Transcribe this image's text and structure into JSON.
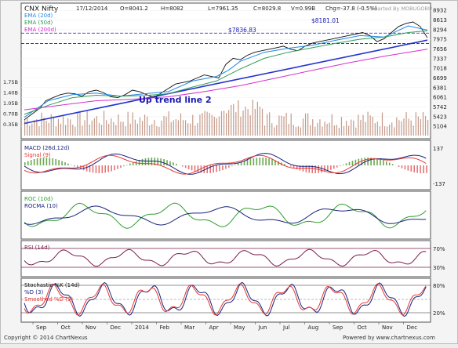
{
  "header": {
    "symbol": "CNX Nifty",
    "date": "17/12/2014",
    "open": "O=8041.2",
    "high": "H=8082",
    "low": "L=7961.35",
    "close": "C=8029.8",
    "volume": "V=0.99B",
    "change": "Chg=-37.8 (-0.5%)",
    "watermark": "Charted By MOBUGOBU"
  },
  "footer": {
    "copyright": "Copyright © 2014 ChartNexus",
    "powered": "Powered by www.chartnexus.com"
  },
  "colors": {
    "price": "#111111",
    "ema20": "#1e88e5",
    "ema50": "#2e9d5a",
    "ema200": "#d42fcf",
    "trendline": "#2233cc",
    "annotation": "#1a1ab0",
    "volume": "#c59a8a",
    "macd": "#1a237e",
    "signal": "#e53935",
    "roc": "#2e9d2e",
    "rocma": "#1a237e",
    "rsi": "#7a1f4a",
    "stochK": "#1a237e",
    "stochD": "#e53935"
  },
  "chart_data": [
    {
      "type": "line",
      "title": "CNX Nifty daily price",
      "x_ticks": [
        "Sep",
        "Oct",
        "Nov",
        "Dec",
        "2014",
        "Feb",
        "Mar",
        "Apr",
        "May",
        "Jun",
        "Jul",
        "Aug",
        "Sep",
        "Oct",
        "Nov",
        "Dec"
      ],
      "y_ticks": [
        8932,
        8613,
        8294,
        7975,
        7656,
        7337,
        7018,
        6699,
        6381,
        6061,
        5742,
        5423,
        5104
      ],
      "ylim": [
        4850,
        8990
      ],
      "legend": [
        "EMA (20d)",
        "EMA (50d)",
        "EMA (200d)"
      ],
      "series": [
        {
          "name": "Price",
          "x": [
            0,
            6,
            13,
            18,
            24,
            30,
            36,
            42,
            48,
            54,
            60,
            66,
            72,
            78,
            84,
            90,
            96,
            102,
            108,
            114,
            120,
            126,
            132,
            138,
            144,
            150,
            156,
            162,
            168,
            174,
            180,
            186,
            192,
            198,
            204,
            210,
            216,
            222,
            228,
            234,
            240,
            246,
            252,
            258,
            264,
            270,
            276,
            282,
            288,
            294,
            300,
            306,
            312,
            318,
            324,
            330,
            336
          ],
          "y": [
            5320,
            5500,
            5700,
            5950,
            6050,
            6150,
            6200,
            6180,
            6100,
            6250,
            6300,
            6220,
            6080,
            6050,
            6150,
            6300,
            6250,
            6150,
            6050,
            6200,
            6350,
            6500,
            6550,
            6600,
            6700,
            6800,
            6750,
            6700,
            7150,
            7350,
            7300,
            7450,
            7550,
            7600,
            7650,
            7700,
            7750,
            7650,
            7600,
            7750,
            7850,
            7900,
            7950,
            8000,
            8050,
            8100,
            8150,
            8200,
            8100,
            7900,
            8000,
            8200,
            8400,
            8500,
            8550,
            8400,
            8030
          ]
        },
        {
          "name": "EMA (20d)",
          "x": [
            0,
            20,
            40,
            60,
            80,
            100,
            120,
            140,
            160,
            170,
            180,
            200,
            220,
            240,
            260,
            280,
            300,
            320,
            336
          ],
          "y": [
            5400,
            5950,
            6150,
            6200,
            6100,
            6180,
            6250,
            6600,
            6750,
            6950,
            7250,
            7550,
            7680,
            7780,
            7950,
            8100,
            8050,
            8420,
            8280
          ]
        },
        {
          "name": "EMA (50d)",
          "x": [
            0,
            20,
            40,
            60,
            80,
            100,
            120,
            140,
            160,
            180,
            200,
            220,
            240,
            260,
            280,
            300,
            320,
            336
          ],
          "y": [
            5500,
            5800,
            6050,
            6130,
            6100,
            6120,
            6180,
            6400,
            6600,
            7000,
            7350,
            7550,
            7700,
            7850,
            7980,
            8050,
            8200,
            8260
          ]
        },
        {
          "name": "EMA (200d)",
          "x": [
            0,
            30,
            60,
            90,
            120,
            150,
            180,
            210,
            240,
            270,
            300,
            336
          ],
          "y": [
            5650,
            5800,
            5950,
            6000,
            6080,
            6250,
            6450,
            6700,
            6950,
            7200,
            7420,
            7650
          ]
        }
      ],
      "trendline": {
        "label": "Up trend line 2",
        "x": [
          0,
          336
        ],
        "y": [
          5200,
          7950
        ]
      },
      "annotations": [
        "$8181.01",
        "$7836.83"
      ],
      "volume_axis": [
        "1.75B",
        "1.40B",
        "1.05B",
        "0.70B",
        "0.35B"
      ]
    },
    {
      "type": "line",
      "title": "MACD (26d,12d)",
      "y_ticks": [
        137,
        -137
      ],
      "series": [
        {
          "name": "MACD (26d,12d)"
        },
        {
          "name": "Signal (9)"
        }
      ]
    },
    {
      "type": "line",
      "title": "ROC (10d)",
      "series": [
        {
          "name": "ROC (10d)"
        },
        {
          "name": "ROCMA (10)"
        }
      ]
    },
    {
      "type": "line",
      "title": "RSI (14d)",
      "y_ticks": [
        "70%",
        "30%"
      ],
      "series": [
        {
          "name": "RSI (14d)"
        }
      ]
    },
    {
      "type": "line",
      "title": "Stochastic %K (14d)",
      "y_ticks": [
        "80%",
        "20%"
      ],
      "series": [
        {
          "name": "%D (3)"
        },
        {
          "name": "Smoothed %D (3)"
        }
      ]
    }
  ]
}
